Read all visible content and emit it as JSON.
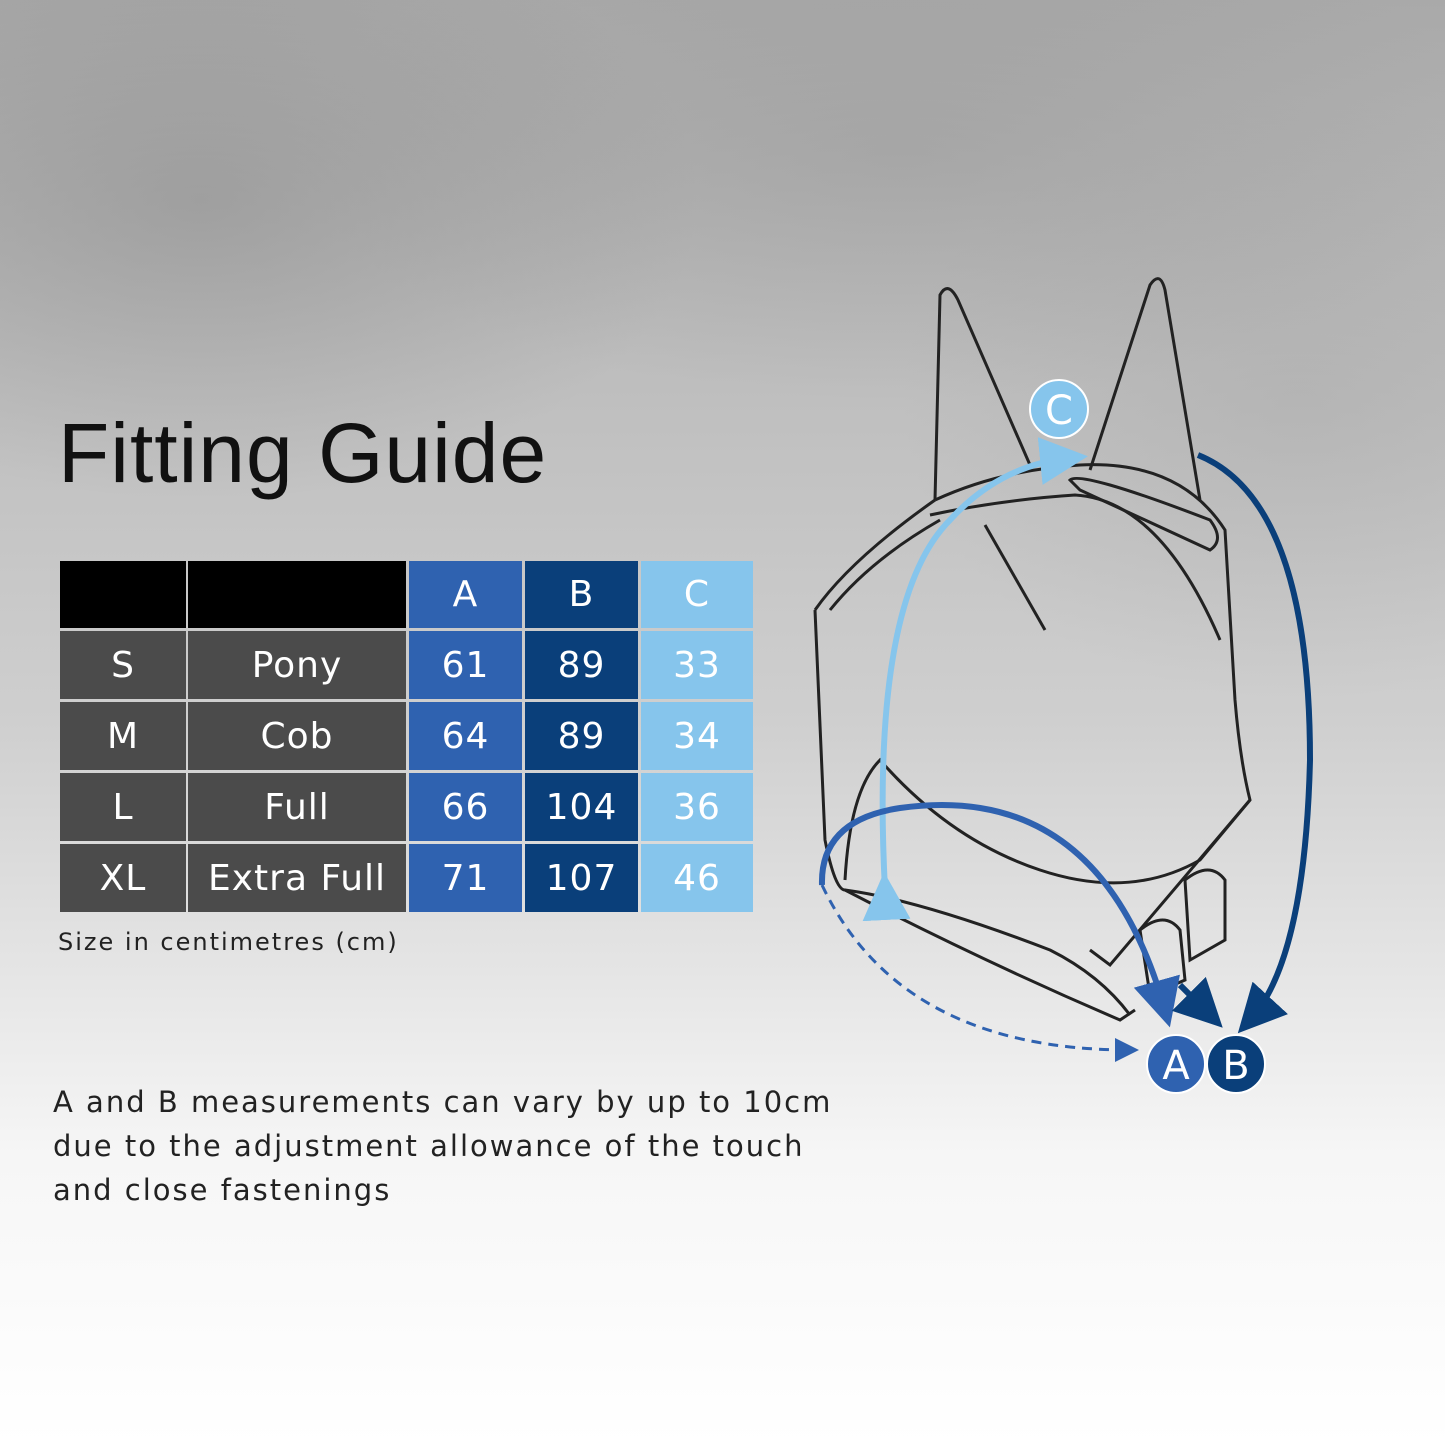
{
  "title": "Fitting Guide",
  "table": {
    "headers": [
      "",
      "",
      "A",
      "B",
      "C"
    ],
    "rows": [
      {
        "size": "S",
        "name": "Pony",
        "a": "61",
        "b": "89",
        "c": "33"
      },
      {
        "size": "M",
        "name": "Cob",
        "a": "64",
        "b": "89",
        "c": "34"
      },
      {
        "size": "L",
        "name": "Full",
        "a": "66",
        "b": "104",
        "c": "36"
      },
      {
        "size": "XL",
        "name": "Extra Full",
        "a": "71",
        "b": "107",
        "c": "46"
      }
    ]
  },
  "unit_note": "Size in centimetres (cm)",
  "disclaimer": "A and B measurements can vary by up to 10cm due to the adjustment allowance of the touch and close fastenings",
  "diagram": {
    "labels": {
      "a": "A",
      "b": "B",
      "c": "C"
    },
    "colors": {
      "a": "#2f62b0",
      "b": "#0a3f7a",
      "c": "#86c5ec",
      "grey": "#4b4b4b"
    }
  }
}
